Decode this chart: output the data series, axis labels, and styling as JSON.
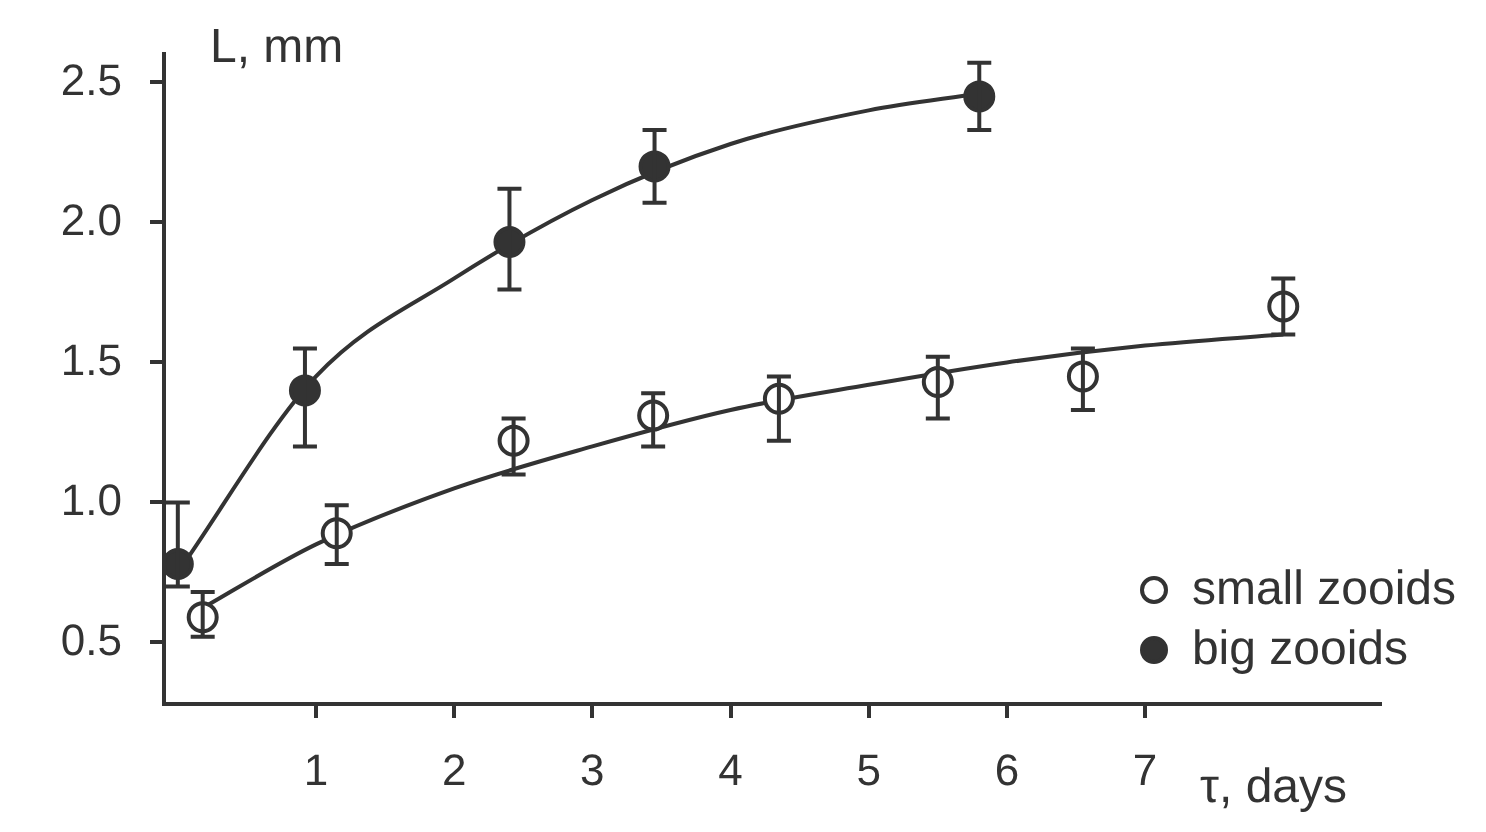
{
  "chart_data": {
    "type": "scatter",
    "xlabel": "τ, days",
    "ylabel": "L, mm",
    "xlim": [
      -0.1,
      8.7
    ],
    "xticks": [
      1,
      2,
      3,
      4,
      5,
      6,
      7
    ],
    "ylim": [
      0.28,
      2.6
    ],
    "yticks": [
      {
        "value": 0.5,
        "label": "0.5"
      },
      {
        "value": 1,
        "label": "1.0"
      },
      {
        "value": 1.5,
        "label": "1.5"
      },
      {
        "value": 2,
        "label": "2.0"
      },
      {
        "value": 2.5,
        "label": "2.5"
      }
    ],
    "grid": false,
    "legend": "bottom right",
    "marker": "circle",
    "series": [
      {
        "name": "small zooids",
        "color": "#ffffff",
        "x": [
          0.18,
          1.15,
          2.43,
          3.44,
          4.35,
          5.5,
          6.55,
          8.0
        ],
        "values": [
          0.59,
          0.89,
          1.22,
          1.31,
          1.37,
          1.43,
          1.45,
          1.7
        ],
        "errors": [
          [
            0.52,
            0.68
          ],
          [
            0.78,
            0.99
          ],
          [
            1.1,
            1.3
          ],
          [
            1.2,
            1.39
          ],
          [
            1.22,
            1.45
          ],
          [
            1.3,
            1.52
          ],
          [
            1.33,
            1.55
          ],
          [
            1.6,
            1.8
          ]
        ]
      },
      {
        "name": "big zooids",
        "color": "#333333",
        "x": [
          0,
          0.92,
          2.4,
          3.45,
          5.8
        ],
        "values": [
          0.78,
          1.4,
          1.93,
          2.2,
          2.45
        ],
        "errors": [
          [
            0.7,
            1.0
          ],
          [
            1.2,
            1.55
          ],
          [
            1.76,
            2.12
          ],
          [
            2.07,
            2.33
          ],
          [
            2.33,
            2.57
          ]
        ]
      },
      {
        "type": "line",
        "color": "#333333",
        "marker": "none",
        "x": [
          0.1,
          1,
          2,
          3,
          4,
          5,
          6,
          7,
          8
        ],
        "values": [
          0.6,
          0.85,
          1.05,
          1.2,
          1.33,
          1.42,
          1.5,
          1.56,
          1.6
        ]
      },
      {
        "type": "line",
        "color": "#333333",
        "marker": "none",
        "x": [
          0,
          1,
          2,
          3,
          4,
          5,
          5.8
        ],
        "values": [
          0.75,
          1.45,
          1.8,
          2.08,
          2.28,
          2.4,
          2.46
        ]
      }
    ]
  }
}
